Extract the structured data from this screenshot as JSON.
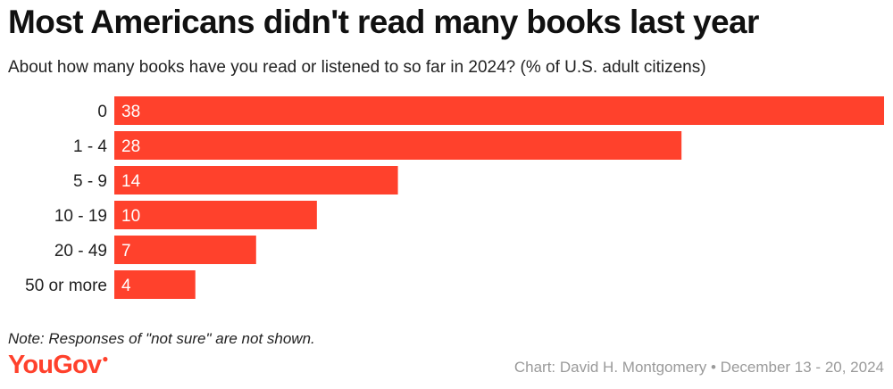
{
  "header": {
    "title": "Most Americans didn't read many books last year",
    "subtitle": "About how many books have you read or listened to so far in 2024? (% of U.S. adult citizens)"
  },
  "footer": {
    "note": "Note: Responses of \"not sure\" are not shown.",
    "brand": "YouGov",
    "credit": "Chart: David H. Montgomery • December 13 - 20, 2024"
  },
  "colors": {
    "bar": "#ff412c",
    "bar_label": "#ffffff",
    "category_label": "#222222"
  },
  "chart_data": {
    "type": "bar",
    "orientation": "horizontal",
    "title": "Most Americans didn't read many books last year",
    "subtitle": "About how many books have you read or listened to so far in 2024? (% of U.S. adult citizens)",
    "categories": [
      "0",
      "1 - 4",
      "5 - 9",
      "10 - 19",
      "20 - 49",
      "50 or more"
    ],
    "values": [
      38,
      28,
      14,
      10,
      7,
      4
    ],
    "data_labels": [
      "38",
      "28",
      "14",
      "10",
      "7",
      "4"
    ],
    "xlabel": "",
    "ylabel": "",
    "xlim": [
      0,
      38
    ],
    "grid": false,
    "legend": "none"
  }
}
